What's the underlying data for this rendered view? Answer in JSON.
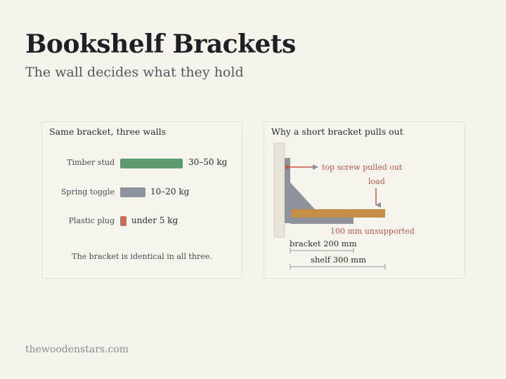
{
  "page": {
    "title": "Bookshelf Brackets",
    "subtitle": "The wall decides what they hold",
    "footer": "thewoodenstars.com"
  },
  "left_panel": {
    "title": "Same bracket, three walls",
    "note": "The bracket is identical in all three.",
    "rows": [
      {
        "label": "Timber stud",
        "value": "30–50 kg",
        "color": "#5e9a6e"
      },
      {
        "label": "Spring toggle",
        "value": "10–20 kg",
        "color": "#8e939b"
      },
      {
        "label": "Plastic plug",
        "value": "under 5 kg",
        "color": "#c96a5c"
      }
    ]
  },
  "right_panel": {
    "title": "Why a short bracket pulls out",
    "callout_screw": "top screw pulled out",
    "callout_load": "load",
    "callout_unsupported": "100 mm unsupported",
    "dim_bracket": "bracket 200 mm",
    "dim_shelf": "shelf 300 mm",
    "colors": {
      "wall": "#e9e4da",
      "bracket": "#8e939b",
      "shelf": "#c38e45",
      "callout": "#c0564a",
      "dimension": "#9a9ca0"
    }
  }
}
